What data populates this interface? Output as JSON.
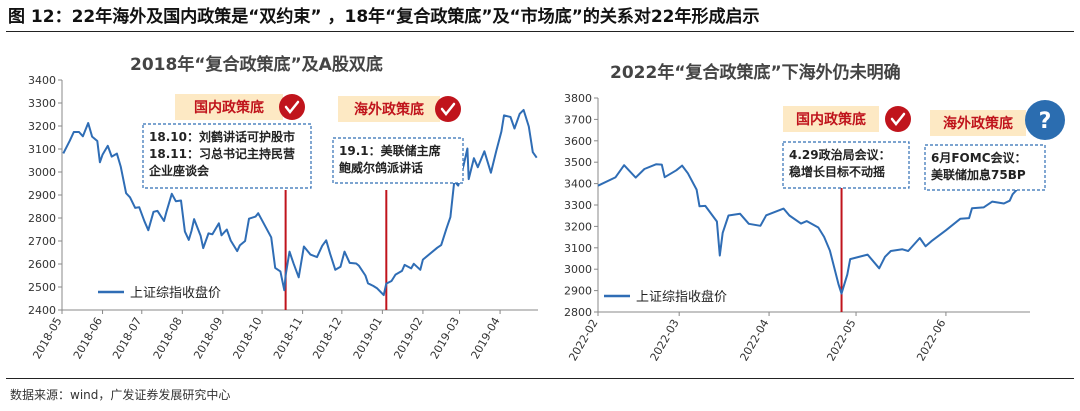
{
  "figure_title": "图 12：22年海外及国内政策是“双约束”  ，18年“复合政策底”及“市场底”的关系对22年形成启示",
  "source": "数据来源：wind，广发证券发展研究中心",
  "colors": {
    "line": "#2f6db5",
    "policy_line": "#c0141c",
    "box_border": "#2f6db5",
    "tag_bg": "#fde9c4",
    "tag_text": "#c0141c",
    "check_bg": "#c0141c",
    "question_bg": "#2b6db0"
  },
  "chart_data": [
    {
      "type": "line",
      "title": "2018年“复合政策底”及A股双底",
      "legend": "上证综指收盘价",
      "legend_position": "bottom-left",
      "xlabel": "",
      "ylabel": "",
      "x_ticks": [
        "2018-05",
        "2018-06",
        "2018-07",
        "2018-08",
        "2018-09",
        "2018-10",
        "2018-11",
        "2018-12",
        "2019-01",
        "2019-02",
        "2019-03",
        "2019-04"
      ],
      "y_ticks": [
        2400,
        2500,
        2600,
        2700,
        2800,
        2900,
        3000,
        3100,
        3200,
        3300,
        3400
      ],
      "ylim": [
        2400,
        3400
      ],
      "x_range": [
        "2018-05-01",
        "2019-04-30"
      ],
      "grid": false,
      "series": [
        {
          "name": "上证综指收盘价",
          "points": [
            [
              "2018-05-02",
              3081
            ],
            [
              "2018-05-07",
              3136
            ],
            [
              "2018-05-10",
              3174
            ],
            [
              "2018-05-14",
              3174
            ],
            [
              "2018-05-17",
              3155
            ],
            [
              "2018-05-21",
              3213
            ],
            [
              "2018-05-24",
              3154
            ],
            [
              "2018-05-28",
              3135
            ],
            [
              "2018-05-30",
              3042
            ],
            [
              "2018-06-01",
              3075
            ],
            [
              "2018-06-05",
              3114
            ],
            [
              "2018-06-08",
              3067
            ],
            [
              "2018-06-12",
              3080
            ],
            [
              "2018-06-15",
              3022
            ],
            [
              "2018-06-19",
              2908
            ],
            [
              "2018-06-22",
              2890
            ],
            [
              "2018-06-26",
              2844
            ],
            [
              "2018-06-29",
              2847
            ],
            [
              "2018-07-03",
              2786
            ],
            [
              "2018-07-06",
              2747
            ],
            [
              "2018-07-10",
              2827
            ],
            [
              "2018-07-13",
              2831
            ],
            [
              "2018-07-18",
              2787
            ],
            [
              "2018-07-20",
              2829
            ],
            [
              "2018-07-24",
              2905
            ],
            [
              "2018-07-27",
              2873
            ],
            [
              "2018-07-31",
              2876
            ],
            [
              "2018-08-03",
              2741
            ],
            [
              "2018-08-06",
              2705
            ],
            [
              "2018-08-08",
              2744
            ],
            [
              "2018-08-10",
              2795
            ],
            [
              "2018-08-15",
              2723
            ],
            [
              "2018-08-17",
              2669
            ],
            [
              "2018-08-21",
              2733
            ],
            [
              "2018-08-24",
              2729
            ],
            [
              "2018-08-29",
              2777
            ],
            [
              "2018-08-31",
              2725
            ],
            [
              "2018-09-04",
              2750
            ],
            [
              "2018-09-07",
              2702
            ],
            [
              "2018-09-12",
              2656
            ],
            [
              "2018-09-14",
              2681
            ],
            [
              "2018-09-18",
              2700
            ],
            [
              "2018-09-21",
              2797
            ],
            [
              "2018-09-26",
              2806
            ],
            [
              "2018-09-28",
              2821
            ],
            [
              "2018-10-08",
              2716
            ],
            [
              "2018-10-11",
              2583
            ],
            [
              "2018-10-15",
              2568
            ],
            [
              "2018-10-18",
              2486
            ],
            [
              "2018-10-19",
              2550
            ],
            [
              "2018-10-22",
              2654
            ],
            [
              "2018-10-25",
              2603
            ],
            [
              "2018-10-29",
              2542
            ],
            [
              "2018-11-02",
              2676
            ],
            [
              "2018-11-07",
              2641
            ],
            [
              "2018-11-12",
              2630
            ],
            [
              "2018-11-16",
              2679
            ],
            [
              "2018-11-19",
              2703
            ],
            [
              "2018-11-22",
              2645
            ],
            [
              "2018-11-26",
              2575
            ],
            [
              "2018-11-30",
              2588
            ],
            [
              "2018-12-03",
              2654
            ],
            [
              "2018-12-07",
              2605
            ],
            [
              "2018-12-12",
              2602
            ],
            [
              "2018-12-14",
              2593
            ],
            [
              "2018-12-19",
              2550
            ],
            [
              "2018-12-21",
              2516
            ],
            [
              "2018-12-25",
              2505
            ],
            [
              "2018-12-28",
              2494
            ],
            [
              "2019-01-02",
              2465
            ],
            [
              "2019-01-04",
              2515
            ],
            [
              "2019-01-08",
              2526
            ],
            [
              "2019-01-11",
              2554
            ],
            [
              "2019-01-16",
              2570
            ],
            [
              "2019-01-18",
              2596
            ],
            [
              "2019-01-23",
              2581
            ],
            [
              "2019-01-25",
              2601
            ],
            [
              "2019-01-30",
              2575
            ],
            [
              "2019-02-01",
              2619
            ],
            [
              "2019-02-12",
              2671
            ],
            [
              "2019-02-15",
              2682
            ],
            [
              "2019-02-19",
              2755
            ],
            [
              "2019-02-22",
              2804
            ],
            [
              "2019-02-25",
              2961
            ],
            [
              "2019-02-28",
              2941
            ],
            [
              "2019-03-04",
              3027
            ],
            [
              "2019-03-07",
              3102
            ],
            [
              "2019-03-08",
              2969
            ],
            [
              "2019-03-12",
              3060
            ],
            [
              "2019-03-15",
              3021
            ],
            [
              "2019-03-20",
              3090
            ],
            [
              "2019-03-25",
              2997
            ],
            [
              "2019-03-29",
              3090
            ],
            [
              "2019-04-02",
              3176
            ],
            [
              "2019-04-04",
              3246
            ],
            [
              "2019-04-09",
              3239
            ],
            [
              "2019-04-12",
              3189
            ],
            [
              "2019-04-16",
              3253
            ],
            [
              "2019-04-19",
              3270
            ],
            [
              "2019-04-23",
              3198
            ],
            [
              "2019-04-26",
              3086
            ],
            [
              "2019-04-29",
              3062
            ]
          ]
        }
      ],
      "policy_lines": [
        {
          "date": "2018-10-19",
          "tag": "国内政策底",
          "note": [
            "18.10：刘鹤讲话可护股市",
            "18.11：习总书记主持民营",
            "企业座谈会"
          ],
          "icon": "check-icon"
        },
        {
          "date": "2019-01-04",
          "tag": "海外政策底",
          "note": [
            "19.1：美联储主席",
            "鲍威尔鸽派讲话"
          ],
          "icon": "check-icon"
        }
      ]
    },
    {
      "type": "line",
      "title": "2022年“复合政策底”下海外仍未明确",
      "legend": "上证综指收盘价",
      "legend_position": "bottom-left",
      "xlabel": "",
      "ylabel": "",
      "x_ticks": [
        "2022-02",
        "2022-03",
        "2022-04",
        "2022-05",
        "2022-06"
      ],
      "y_ticks": [
        2800,
        2900,
        3000,
        3100,
        3200,
        3300,
        3400,
        3500,
        3600,
        3700,
        3800
      ],
      "ylim": [
        2800,
        3800
      ],
      "x_range": [
        "2022-02-01",
        "2022-06-30"
      ],
      "grid": false,
      "series": [
        {
          "name": "上证综指收盘价",
          "points": [
            [
              "2022-02-01",
              3390
            ],
            [
              "2022-02-07",
              3429
            ],
            [
              "2022-02-10",
              3486
            ],
            [
              "2022-02-14",
              3428
            ],
            [
              "2022-02-17",
              3468
            ],
            [
              "2022-02-21",
              3490
            ],
            [
              "2022-02-23",
              3489
            ],
            [
              "2022-02-24",
              3430
            ],
            [
              "2022-02-28",
              3462
            ],
            [
              "2022-03-02",
              3484
            ],
            [
              "2022-03-04",
              3448
            ],
            [
              "2022-03-07",
              3372
            ],
            [
              "2022-03-08",
              3294
            ],
            [
              "2022-03-10",
              3296
            ],
            [
              "2022-03-14",
              3223
            ],
            [
              "2022-03-15",
              3064
            ],
            [
              "2022-03-16",
              3170
            ],
            [
              "2022-03-18",
              3251
            ],
            [
              "2022-03-22",
              3259
            ],
            [
              "2022-03-25",
              3212
            ],
            [
              "2022-03-29",
              3203
            ],
            [
              "2022-03-31",
              3252
            ],
            [
              "2022-04-06",
              3283
            ],
            [
              "2022-04-08",
              3251
            ],
            [
              "2022-04-12",
              3213
            ],
            [
              "2022-04-14",
              3225
            ],
            [
              "2022-04-18",
              3195
            ],
            [
              "2022-04-20",
              3151
            ],
            [
              "2022-04-22",
              3087
            ],
            [
              "2022-04-25",
              2928
            ],
            [
              "2022-04-26",
              2886
            ],
            [
              "2022-04-28",
              2975
            ],
            [
              "2022-04-29",
              3047
            ],
            [
              "2022-05-05",
              3068
            ],
            [
              "2022-05-09",
              3004
            ],
            [
              "2022-05-11",
              3058
            ],
            [
              "2022-05-13",
              3085
            ],
            [
              "2022-05-17",
              3093
            ],
            [
              "2022-05-19",
              3085
            ],
            [
              "2022-05-23",
              3146
            ],
            [
              "2022-05-25",
              3107
            ],
            [
              "2022-05-27",
              3131
            ],
            [
              "2022-06-01",
              3182
            ],
            [
              "2022-06-06",
              3236
            ],
            [
              "2022-06-09",
              3239
            ],
            [
              "2022-06-10",
              3285
            ],
            [
              "2022-06-14",
              3289
            ],
            [
              "2022-06-17",
              3316
            ],
            [
              "2022-06-21",
              3307
            ],
            [
              "2022-06-23",
              3320
            ],
            [
              "2022-06-24",
              3350
            ],
            [
              "2022-06-28",
              3409
            ],
            [
              "2022-06-30",
              3399
            ]
          ]
        }
      ],
      "policy_lines": [
        {
          "date": "2022-04-26",
          "tag": "国内政策底",
          "note": [
            "4.29政治局会议：",
            "稳增长目标不动摇"
          ],
          "icon": "check-icon"
        }
      ],
      "pending": {
        "tag": "海外政策底",
        "note": [
          "6月FOMC会议：",
          "美联储加息75BP"
        ],
        "icon": "question-icon"
      }
    }
  ]
}
